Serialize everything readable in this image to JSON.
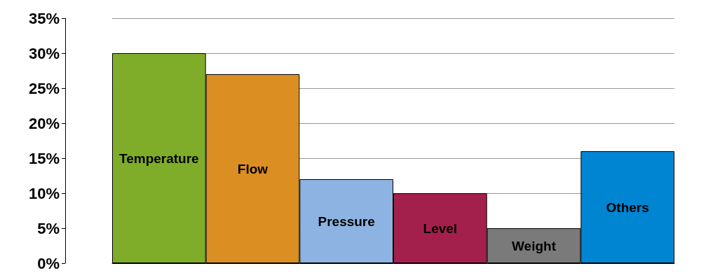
{
  "chart_data": {
    "type": "bar",
    "categories": [
      "Temperature",
      "Flow",
      "Pressure",
      "Level",
      "Weight",
      "Others"
    ],
    "values": [
      30,
      27,
      12,
      10,
      5,
      16
    ],
    "colors": [
      "#7fad2a",
      "#db8f22",
      "#8db3e2",
      "#a4204c",
      "#7a7a7a",
      "#0085d2"
    ],
    "ylim": [
      0,
      35
    ],
    "yticks": [
      {
        "value": 0,
        "label": "0%"
      },
      {
        "value": 5,
        "label": "5%"
      },
      {
        "value": 10,
        "label": "10%"
      },
      {
        "value": 15,
        "label": "15%"
      },
      {
        "value": 20,
        "label": "20%"
      },
      {
        "value": 25,
        "label": "25%"
      },
      {
        "value": 30,
        "label": "30%"
      },
      {
        "value": 35,
        "label": "35%"
      }
    ],
    "grid": "y",
    "tick_labels": "y"
  }
}
